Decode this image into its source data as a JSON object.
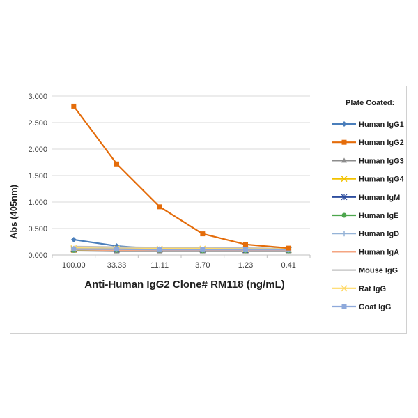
{
  "chart_data": {
    "type": "line",
    "title": "",
    "xlabel": "Anti-Human IgG2 Clone# RM118 (ng/mL)",
    "ylabel": "Abs (405nm)",
    "ylim": [
      0,
      3
    ],
    "yticks": [
      "0.000",
      "0.500",
      "1.000",
      "1.500",
      "2.000",
      "2.500",
      "3.000"
    ],
    "ytick_values": [
      0,
      0.5,
      1,
      1.5,
      2,
      2.5,
      3
    ],
    "categories": [
      "100.00",
      "33.33",
      "11.11",
      "3.70",
      "1.23",
      "0.41"
    ],
    "grid": "horizontal",
    "legend_title": "Plate Coated:",
    "legend_position": "right",
    "series": [
      {
        "name": "Human IgG1",
        "color": "#4a7ebb",
        "marker": "diamond",
        "values": [
          0.29,
          0.17,
          0.11,
          0.1,
          0.09,
          0.09
        ]
      },
      {
        "name": "Human IgG2",
        "color": "#e46c0a",
        "marker": "square",
        "values": [
          2.81,
          1.72,
          0.91,
          0.4,
          0.2,
          0.13
        ]
      },
      {
        "name": "Human IgG3",
        "color": "#8c8c8c",
        "marker": "triangle",
        "values": [
          0.08,
          0.07,
          0.07,
          0.07,
          0.07,
          0.07
        ]
      },
      {
        "name": "Human IgG4",
        "color": "#f2c200",
        "marker": "x",
        "values": [
          0.1,
          0.1,
          0.1,
          0.1,
          0.09,
          0.09
        ]
      },
      {
        "name": "Human IgM",
        "color": "#2e4e9e",
        "marker": "star",
        "values": [
          0.11,
          0.1,
          0.1,
          0.1,
          0.09,
          0.09
        ]
      },
      {
        "name": "Human IgE",
        "color": "#4da64d",
        "marker": "circle",
        "values": [
          0.09,
          0.09,
          0.09,
          0.08,
          0.08,
          0.08
        ]
      },
      {
        "name": "Human IgD",
        "color": "#95b3d7",
        "marker": "plus",
        "values": [
          0.12,
          0.11,
          0.11,
          0.1,
          0.1,
          0.1
        ]
      },
      {
        "name": "Human IgA",
        "color": "#f4a582",
        "marker": "dash",
        "values": [
          0.1,
          0.09,
          0.09,
          0.09,
          0.09,
          0.09
        ]
      },
      {
        "name": "Mouse IgG",
        "color": "#bfbfbf",
        "marker": "none",
        "values": [
          0.16,
          0.15,
          0.14,
          0.14,
          0.13,
          0.12
        ]
      },
      {
        "name": "Rat IgG",
        "color": "#ffd966",
        "marker": "x",
        "values": [
          0.13,
          0.12,
          0.12,
          0.12,
          0.11,
          0.11
        ]
      },
      {
        "name": "Goat IgG",
        "color": "#8ea9db",
        "marker": "square",
        "values": [
          0.11,
          0.11,
          0.1,
          0.1,
          0.1,
          0.1
        ]
      }
    ]
  }
}
